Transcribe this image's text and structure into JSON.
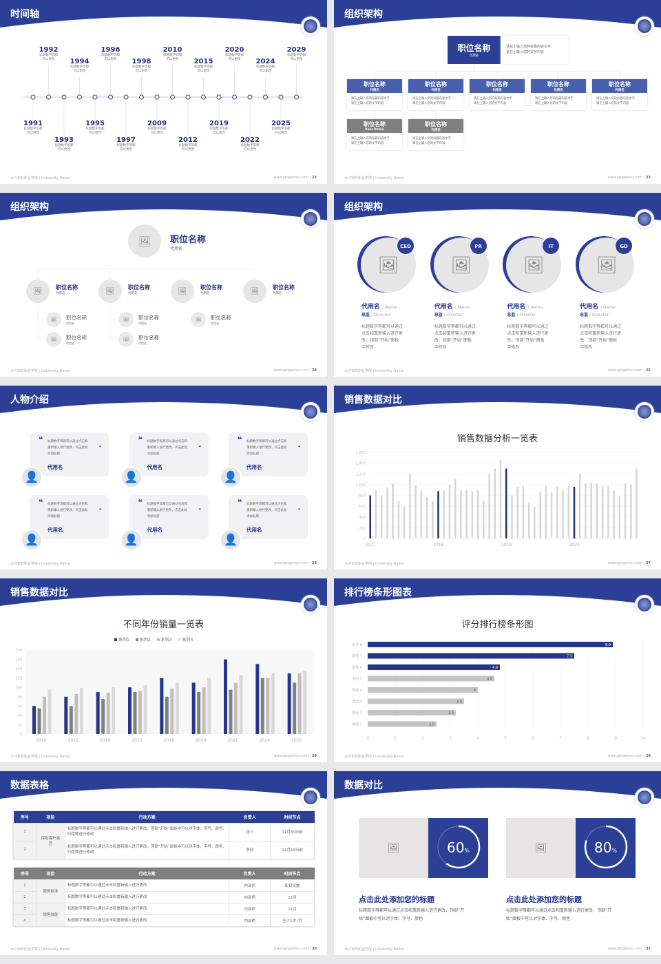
{
  "colors": {
    "brand_blue": "#2b3f96",
    "dark_blue": "#1f2f80",
    "gray_bar": "#d3d3d3",
    "dark_gray": "#7f7f7f"
  },
  "footer": {
    "left": "大兴安岭职业学院 | University Name",
    "site": "www.pptgenius.com"
  },
  "slides": [
    {
      "title": "时间轴",
      "page": "22",
      "events": [
        {
          "year": "1991",
          "desc": [
            "标题数字等都",
            "可以更改"
          ]
        },
        {
          "year": "1992",
          "desc": [
            "标题数字等都",
            "可以更改"
          ]
        },
        {
          "year": "1993",
          "desc": [
            "标题数字等都",
            "可以更改"
          ]
        },
        {
          "year": "1994",
          "desc": [
            "标题数字等都",
            "可以更改"
          ]
        },
        {
          "year": "1995",
          "desc": [
            "标题数字等都",
            "可以更改"
          ]
        },
        {
          "year": "1996",
          "desc": [
            "标题数字等都",
            "可以更改"
          ]
        },
        {
          "year": "1997",
          "desc": [
            "标题数字等都",
            "可以更改"
          ]
        },
        {
          "year": "1998",
          "desc": [
            "标题数字等都",
            "可以更改"
          ]
        },
        {
          "year": "2009",
          "desc": [
            "标题数字等都",
            "可以更改"
          ]
        },
        {
          "year": "2010",
          "desc": [
            "标题数字等都",
            "可以更改"
          ]
        },
        {
          "year": "2012",
          "desc": [
            "标题数字等都",
            "可以更改"
          ]
        },
        {
          "year": "2015",
          "desc": [
            "标题数字等都",
            "可以更改"
          ]
        },
        {
          "year": "2019",
          "desc": [
            "标题数字等都",
            "可以更改"
          ]
        },
        {
          "year": "2020",
          "desc": [
            "标题数字等都",
            "可以更改"
          ]
        },
        {
          "year": "2022",
          "desc": [
            "标题数字等都",
            "可以更改"
          ]
        },
        {
          "year": "2024",
          "desc": [
            "标题数字等都",
            "可以更改"
          ]
        },
        {
          "year": "2025",
          "desc": [
            "标题数字等都",
            "可以更改"
          ]
        },
        {
          "year": "2029",
          "desc": [
            "标题数字等都",
            "可以更改"
          ]
        }
      ]
    },
    {
      "title": "组织架构",
      "page": "23",
      "top": {
        "name": "职位名称",
        "sub": "代用名",
        "desc": [
          "请在上输入您的标题内容文字",
          "请在上输入您的文字内容"
        ]
      },
      "boxes": [
        {
          "name": "职位名称",
          "sub": "代用名",
          "desc": [
            "请在上输入您的标题内容文字",
            "请在上输入您的文字内容"
          ],
          "style": "blue"
        },
        {
          "name": "职位名称",
          "sub": "代用名",
          "desc": [
            "请在上输入您的标题内容文字",
            "请在上输入您的文字内容"
          ],
          "style": "blue"
        },
        {
          "name": "职位名称",
          "sub": "代用名",
          "desc": [
            "请在上输入您的标题内容文字",
            "请在上输入您的文字内容"
          ],
          "style": "blue"
        },
        {
          "name": "职位名称",
          "sub": "代用名",
          "desc": [
            "请在上输入您的标题内容文字",
            "请在上输入您的文字内容"
          ],
          "style": "blue"
        },
        {
          "name": "职位名称",
          "sub": "代用名",
          "desc": [
            "请在上输入您的标题内容文字",
            "请在上输入您的文字内容"
          ],
          "style": "blue"
        },
        {
          "name": "职位名称",
          "sub": "Your Name",
          "desc": [
            "请在上输入您的标题内容文字",
            "请在上输入您的文字内容"
          ],
          "style": "gray"
        },
        {
          "name": "职位名称",
          "sub": "代用名",
          "desc": [
            "请在上输入您的标题内容文字",
            "请在上输入您的文字内容"
          ],
          "style": "gray"
        }
      ]
    },
    {
      "title": "组织架构",
      "page": "24",
      "top": {
        "name": "职位名称",
        "sub": "代用名"
      },
      "level2": [
        {
          "name": "职位名称",
          "sub": "代用名"
        },
        {
          "name": "职位名称",
          "sub": "代用名"
        },
        {
          "name": "职位名称",
          "sub": "代用名"
        },
        {
          "name": "职位名称",
          "sub": "代用名"
        }
      ],
      "level3": [
        {
          "name": "职位名称",
          "sub": "代用名"
        },
        {
          "name": "职位名称",
          "sub": "代用名"
        },
        {
          "name": "职位名称",
          "sub": "代用名"
        },
        {
          "name": "职位名称",
          "sub": "代用名"
        },
        {
          "name": "职位名称",
          "sub": "代用名"
        }
      ]
    },
    {
      "title": "组织架构",
      "page": "25",
      "members": [
        {
          "badge": "CEO",
          "name": "代用名",
          "name_en": "/ Name",
          "role": "总监",
          "role_en": "/  Director",
          "desc": [
            "标题数字等都可以通过",
            "点击和重新输入进行更",
            "改，顶部“开始”面板",
            "中修改"
          ]
        },
        {
          "badge": "PR",
          "name": "代用名",
          "name_en": "/ Name",
          "role": "总监",
          "role_en": "/  Director",
          "desc": [
            "标题数字等都可以通过",
            "点击和重新输入进行更",
            "改，顶部“开始”面板",
            "中修改"
          ]
        },
        {
          "badge": "IT",
          "name": "代用名",
          "name_en": "/ Name",
          "role": "总监",
          "role_en": "/  Director",
          "desc": [
            "标题数字等都可以通过",
            "点击和重新输入进行更",
            "改，顶部“开始”面板",
            "中修改"
          ]
        },
        {
          "badge": "GD",
          "name": "代用名",
          "name_en": "/ Name",
          "role": "总监",
          "role_en": "/  Director",
          "desc": [
            "标题数字等都可以通过",
            "点击和重新输入进行更",
            "改，顶部“开始”面板",
            "中修改"
          ]
        }
      ]
    },
    {
      "title": "人物介绍",
      "page": "26",
      "cards": [
        {
          "quote": [
            "标题数字等都可以通过点击和",
            "重新输入进行更改，点击此处",
            "添加标题"
          ],
          "name": "代用名"
        },
        {
          "quote": [
            "标题数字等都可以通过点击和",
            "重新输入进行更改，点击此处",
            "添加标题"
          ],
          "name": "代用名"
        },
        {
          "quote": [
            "标题数字等都可以通过点击和",
            "重新输入进行更改，点击此处",
            "添加标题"
          ],
          "name": "代用名"
        },
        {
          "quote": [
            "标题数字等都可以通过点击和",
            "重新输入进行更改，点击此处",
            "添加标题"
          ],
          "name": "代用名"
        },
        {
          "quote": [
            "标题数字等都可以通过点击和",
            "重新输入进行更改，点击此处",
            "添加标题"
          ],
          "name": "代用名"
        },
        {
          "quote": [
            "标题数字等都可以通过点击和",
            "重新输入进行更改，点击此处",
            "添加标题"
          ],
          "name": "代用名"
        }
      ]
    },
    {
      "title": "销售数据对比",
      "page": "27"
    },
    {
      "title": "销售数据对比",
      "page": "28"
    },
    {
      "title": "排行榜条形图表",
      "page": "29"
    },
    {
      "title": "数据表格",
      "page": "30",
      "table1": {
        "headers": [
          "序号",
          "项目",
          "行动方案",
          "负责人",
          "时间节点"
        ],
        "group": "保有客户激活",
        "rows": [
          [
            "1",
            "标题数字等都可以通过点击和重新输入进行更改，顶部“开始”面板中可以对字体、字号、颜色、行距等进行修改",
            "张三",
            "11月30日前"
          ],
          [
            "2",
            "标题数字等都可以通过点击和重新输入进行更改，顶部“开始”面板中可以对字体、字号、颜色、行距等进行修改",
            "李四",
            "11月15日前"
          ]
        ]
      },
      "table2": {
        "headers": [
          "序号",
          "项目",
          "行动方案",
          "负责人",
          "时间节点"
        ],
        "groups": [
          "服务标准",
          "销售技能"
        ],
        "rows": [
          [
            "1",
            "标题数字等都可以通过点击和重新输入进行更改",
            "内训师",
            "即日实施"
          ],
          [
            "2",
            "标题数字等都可以通过点击和重新输入进行更改",
            "内训师",
            "11月"
          ],
          [
            "3",
            "标题数字等都可以通过点击和重新输入进行更改",
            "内训师",
            "11月"
          ],
          [
            "4",
            "标题数字等都可以通过点击和重新输入进行更改",
            "内训师",
            "至少1次 /月"
          ]
        ]
      }
    },
    {
      "title": "数据对比",
      "page": "31",
      "items": [
        {
          "percent": 60,
          "value": "60",
          "unit": "%",
          "heading": "点击此处添加您的标题",
          "desc": [
            "标题数字等都可以通过点击和重新输入进行更改，顶部“开",
            "始”面板中可以对字体、字号、颜色"
          ]
        },
        {
          "percent": 80,
          "value": "80",
          "unit": "%",
          "heading": "点击此处添加您的标题",
          "desc": [
            "标题数字等都可以通过点击和重新输入进行更改，顶部“开",
            "始”面板中可以对字体、字号、颜色"
          ]
        }
      ]
    }
  ],
  "chart_data": [
    {
      "type": "bar",
      "title": "销售数据分析一览表",
      "ylim": [
        0,
        1600
      ],
      "yticks": [
        "0",
        "200",
        "400",
        "600",
        "800",
        "1,000",
        "1,200",
        "1,400",
        "1,600"
      ],
      "xlabels": [
        "2017",
        "2018",
        "2019",
        "2020"
      ],
      "highlight_every": 12,
      "values": [
        800,
        900,
        800,
        950,
        1020,
        700,
        600,
        1200,
        990,
        890,
        770,
        700,
        880,
        890,
        1000,
        1100,
        900,
        900,
        880,
        900,
        700,
        1200,
        1300,
        1460,
        1300,
        800,
        960,
        970,
        660,
        590,
        870,
        980,
        860,
        960,
        890,
        980,
        960,
        1200,
        1020,
        1030,
        1020,
        980,
        970,
        890,
        780,
        1020,
        1000,
        1300
      ]
    },
    {
      "type": "bar",
      "title": "不同年份销量一览表",
      "ylim": [
        0,
        180
      ],
      "yticks": [
        "0",
        "20",
        "40",
        "60",
        "80",
        "100",
        "120",
        "140",
        "160",
        "180"
      ],
      "legend": "top",
      "categories": [
        "2010",
        "2012",
        "2014",
        "2016",
        "2018",
        "2020",
        "2022",
        "2024",
        "2026"
      ],
      "series": [
        {
          "name": "系列1",
          "color": "#24368c",
          "values": [
            60,
            80,
            90,
            100,
            120,
            110,
            160,
            150,
            130
          ]
        },
        {
          "name": "系列2",
          "color": "#808080",
          "values": [
            55,
            60,
            75,
            90,
            80,
            90,
            95,
            120,
            110
          ]
        },
        {
          "name": "系列3",
          "color": "#bfbfbf",
          "values": [
            80,
            86,
            88,
            92,
            97,
            100,
            110,
            120,
            130
          ]
        },
        {
          "name": "系列4",
          "color": "#d9d9d9",
          "values": [
            95,
            99,
            101,
            104,
            110,
            120,
            126,
            130,
            135
          ]
        }
      ]
    },
    {
      "type": "bar",
      "orientation": "horizontal",
      "title": "评分排行榜条形图",
      "xlim": [
        0,
        10
      ],
      "xticks": [
        "0",
        "1",
        "2",
        "3",
        "4",
        "5",
        "6",
        "7",
        "8",
        "9",
        "10"
      ],
      "categories": [
        "系列 8",
        "系列 7",
        "系列 6",
        "系列 5",
        "类别 4",
        "类别 3",
        "类别 2",
        "类别 1"
      ],
      "values": [
        8.9,
        7.5,
        4.8,
        4.6,
        4,
        3.5,
        3.2,
        2.5
      ],
      "labels": [
        "8.9",
        "7.5",
        "4.8",
        "4.6",
        "4",
        "3.5",
        "3.2",
        "2.5"
      ],
      "highlight_top": 3
    }
  ]
}
